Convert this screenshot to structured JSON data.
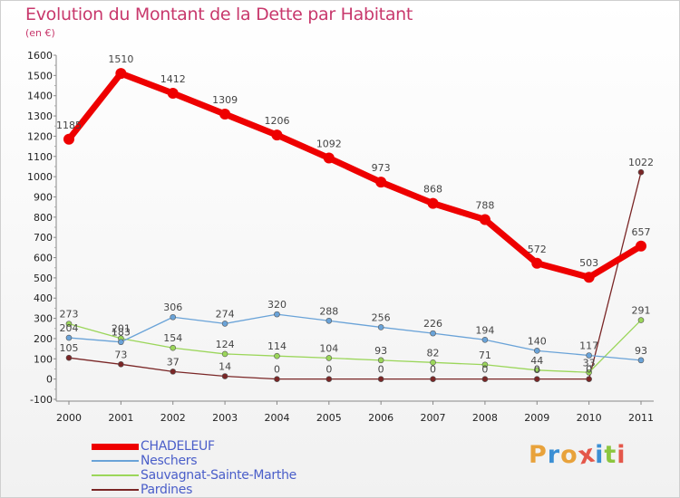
{
  "title": "Evolution du Montant de la Dette par Habitant",
  "unit_label": "(en €)",
  "logo_text": "Proxiti",
  "colors": {
    "title": "#c8386c",
    "legend_text": "#4a5ec9",
    "logo_letters": [
      "#e8a23b",
      "#3b8fd4",
      "#e8a23b",
      "#e4574a",
      "#3b8fd4",
      "#8cc63f",
      "#e4574a"
    ]
  },
  "chart_data": {
    "type": "line",
    "x": [
      "2000",
      "2001",
      "2002",
      "2003",
      "2004",
      "2005",
      "2006",
      "2007",
      "2008",
      "2009",
      "2010",
      "2011"
    ],
    "yticks": [
      "-100",
      "0",
      "100",
      "200",
      "300",
      "400",
      "500",
      "600",
      "700",
      "800",
      "900",
      "1000",
      "1100",
      "1200",
      "1300",
      "1400",
      "1500",
      "1600"
    ],
    "ylim": [
      -100,
      1600
    ],
    "grid": false,
    "legend_position": "bottom-left",
    "series": [
      {
        "name": "CHADELEUF",
        "color": "#ee0000",
        "values": [
          1185,
          1510,
          1412,
          1309,
          1206,
          1092,
          973,
          868,
          788,
          572,
          503,
          657
        ],
        "labels": [
          "1185",
          "1510",
          "1412",
          "1309",
          "1206",
          "1092",
          "973",
          "868",
          "788",
          "572",
          "503",
          "657"
        ]
      },
      {
        "name": "Neschers",
        "color": "#6aa3d8",
        "values": [
          204,
          183,
          306,
          274,
          320,
          288,
          256,
          226,
          194,
          140,
          117,
          93
        ],
        "labels": [
          "204",
          "183",
          "306",
          "274",
          "320",
          "288",
          "256",
          "226",
          "194",
          "140",
          "117",
          "93"
        ]
      },
      {
        "name": "Sauvagnat-Sainte-Marthe",
        "color": "#9bd65a",
        "values": [
          273,
          201,
          154,
          124,
          114,
          104,
          93,
          82,
          71,
          44,
          33,
          291
        ],
        "labels": [
          "273",
          "201",
          "154",
          "124",
          "114",
          "104",
          "93",
          "82",
          "71",
          "44",
          "33",
          "291"
        ]
      },
      {
        "name": "Pardines",
        "color": "#7a2626",
        "values": [
          105,
          73,
          37,
          14,
          0,
          0,
          0,
          0,
          0,
          0,
          0,
          1022
        ],
        "labels": [
          "105",
          "73",
          "37",
          "14",
          "0",
          "0",
          "0",
          "0",
          "0",
          "0",
          "0",
          "1022"
        ]
      }
    ]
  }
}
